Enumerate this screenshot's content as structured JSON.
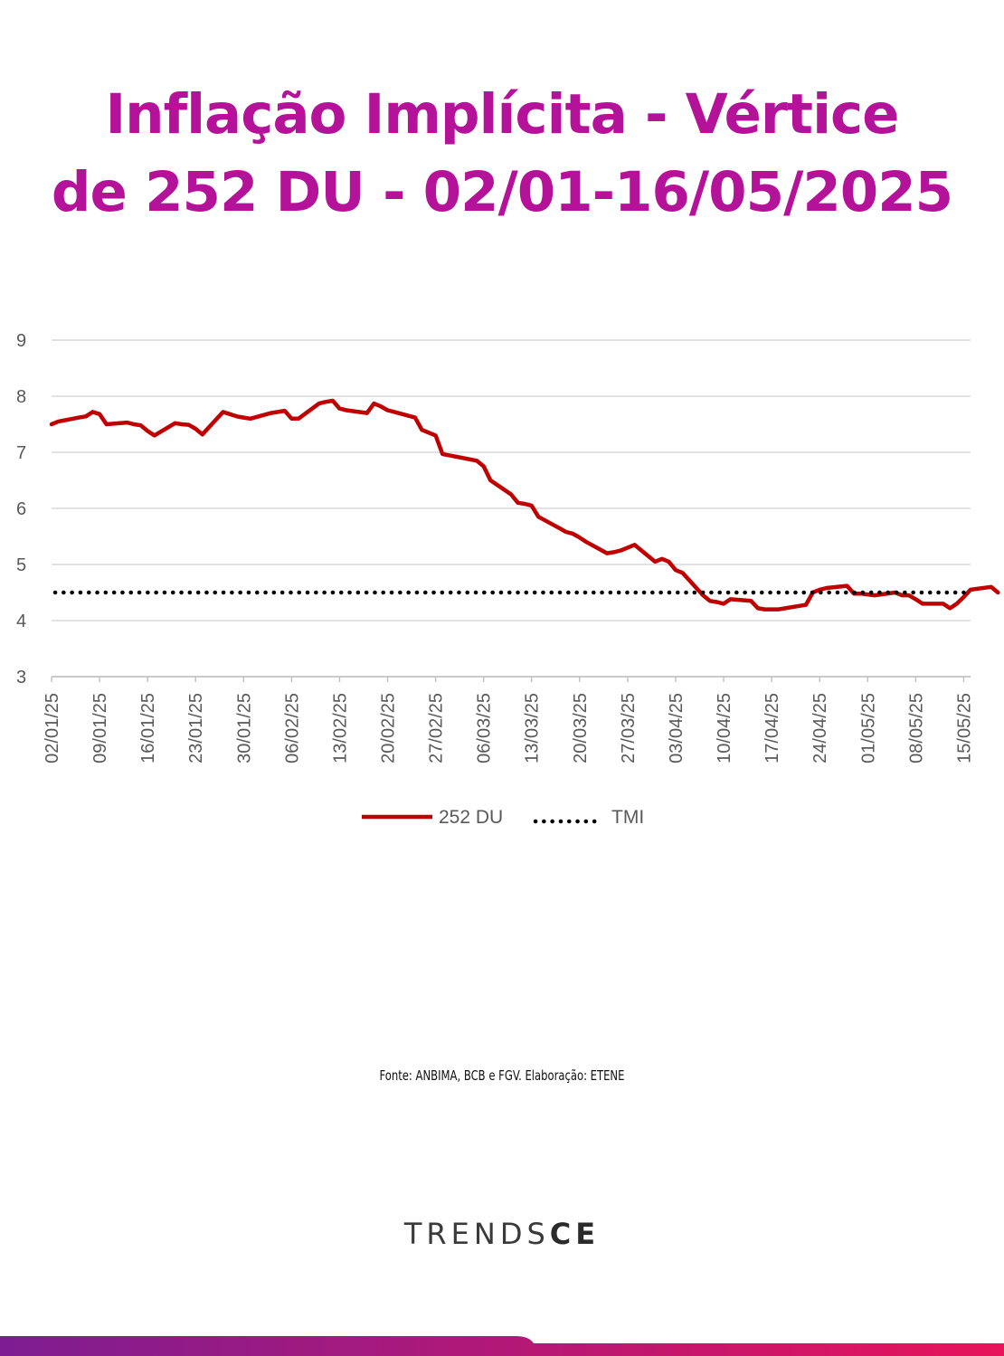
{
  "title_line1": "Inflação Implícita - Vértice",
  "title_line2": "de 252 DU - 02/01-16/05/2025",
  "source": "Fonte: ANBIMA, BCB e FGV. Elaboração: ETENE",
  "brand": {
    "light": "TRENDS",
    "bold": "CE"
  },
  "colors": {
    "title": "#b5129a",
    "series": "#c00000",
    "tmi": "#000000",
    "bar_start": "#7d1d92",
    "bar_end": "#e8135a"
  },
  "chart_data": {
    "type": "line",
    "x_tick_labels": [
      "02/01/25",
      "09/01/25",
      "16/01/25",
      "23/01/25",
      "30/01/25",
      "06/02/25",
      "13/02/25",
      "20/02/25",
      "27/02/25",
      "06/03/25",
      "13/03/25",
      "20/03/25",
      "27/03/25",
      "03/04/25",
      "10/04/25",
      "17/04/25",
      "24/04/25",
      "01/05/25",
      "08/05/25",
      "15/05/25"
    ],
    "y_tick_labels": [
      "3",
      "4",
      "5",
      "6",
      "7",
      "8",
      "9"
    ],
    "ylim": [
      3,
      9
    ],
    "xlim": [
      "2025-01-02",
      "2025-05-16"
    ],
    "grid": "horizontal",
    "legend_position": "bottom",
    "series": [
      {
        "name": "252 DU",
        "style": "solid",
        "color": "#c00000",
        "points": [
          [
            "2025-01-02",
            7.5
          ],
          [
            "2025-01-03",
            7.55
          ],
          [
            "2025-01-06",
            7.62
          ],
          [
            "2025-01-07",
            7.64
          ],
          [
            "2025-01-08",
            7.72
          ],
          [
            "2025-01-09",
            7.68
          ],
          [
            "2025-01-10",
            7.5
          ],
          [
            "2025-01-13",
            7.53
          ],
          [
            "2025-01-14",
            7.5
          ],
          [
            "2025-01-15",
            7.48
          ],
          [
            "2025-01-16",
            7.38
          ],
          [
            "2025-01-17",
            7.3
          ],
          [
            "2025-01-20",
            7.52
          ],
          [
            "2025-01-21",
            7.5
          ],
          [
            "2025-01-22",
            7.49
          ],
          [
            "2025-01-23",
            7.42
          ],
          [
            "2025-01-24",
            7.32
          ],
          [
            "2025-01-27",
            7.72
          ],
          [
            "2025-01-28",
            7.68
          ],
          [
            "2025-01-29",
            7.64
          ],
          [
            "2025-01-30",
            7.62
          ],
          [
            "2025-01-31",
            7.6
          ],
          [
            "2025-02-03",
            7.7
          ],
          [
            "2025-02-04",
            7.72
          ],
          [
            "2025-02-05",
            7.74
          ],
          [
            "2025-02-06",
            7.6
          ],
          [
            "2025-02-07",
            7.6
          ],
          [
            "2025-02-10",
            7.87
          ],
          [
            "2025-02-11",
            7.9
          ],
          [
            "2025-02-12",
            7.92
          ],
          [
            "2025-02-13",
            7.78
          ],
          [
            "2025-02-14",
            7.75
          ],
          [
            "2025-02-17",
            7.7
          ],
          [
            "2025-02-18",
            7.87
          ],
          [
            "2025-02-19",
            7.82
          ],
          [
            "2025-02-20",
            7.75
          ],
          [
            "2025-02-21",
            7.72
          ],
          [
            "2025-02-24",
            7.62
          ],
          [
            "2025-02-25",
            7.4
          ],
          [
            "2025-02-26",
            7.35
          ],
          [
            "2025-02-27",
            7.3
          ],
          [
            "2025-02-28",
            6.97
          ],
          [
            "2025-03-05",
            6.85
          ],
          [
            "2025-03-06",
            6.75
          ],
          [
            "2025-03-07",
            6.5
          ],
          [
            "2025-03-10",
            6.25
          ],
          [
            "2025-03-11",
            6.1
          ],
          [
            "2025-03-12",
            6.08
          ],
          [
            "2025-03-13",
            6.05
          ],
          [
            "2025-03-14",
            5.85
          ],
          [
            "2025-03-17",
            5.65
          ],
          [
            "2025-03-18",
            5.58
          ],
          [
            "2025-03-19",
            5.55
          ],
          [
            "2025-03-20",
            5.48
          ],
          [
            "2025-03-21",
            5.4
          ],
          [
            "2025-03-24",
            5.2
          ],
          [
            "2025-03-25",
            5.22
          ],
          [
            "2025-03-26",
            5.25
          ],
          [
            "2025-03-27",
            5.3
          ],
          [
            "2025-03-28",
            5.35
          ],
          [
            "2025-03-31",
            5.05
          ],
          [
            "2025-04-01",
            5.1
          ],
          [
            "2025-04-02",
            5.05
          ],
          [
            "2025-04-03",
            4.9
          ],
          [
            "2025-04-04",
            4.85
          ],
          [
            "2025-04-07",
            4.45
          ],
          [
            "2025-04-08",
            4.35
          ],
          [
            "2025-04-09",
            4.33
          ],
          [
            "2025-04-10",
            4.3
          ],
          [
            "2025-04-11",
            4.38
          ],
          [
            "2025-04-14",
            4.35
          ],
          [
            "2025-04-15",
            4.22
          ],
          [
            "2025-04-16",
            4.2
          ],
          [
            "2025-04-17",
            4.2
          ],
          [
            "2025-04-18",
            4.2
          ],
          [
            "2025-04-22",
            4.28
          ],
          [
            "2025-04-23",
            4.5
          ],
          [
            "2025-04-24",
            4.55
          ],
          [
            "2025-04-25",
            4.58
          ],
          [
            "2025-04-28",
            4.62
          ],
          [
            "2025-04-29",
            4.48
          ],
          [
            "2025-04-30",
            4.48
          ],
          [
            "2025-05-02",
            4.45
          ],
          [
            "2025-05-05",
            4.5
          ],
          [
            "2025-05-06",
            4.45
          ],
          [
            "2025-05-07",
            4.45
          ],
          [
            "2025-05-08",
            4.38
          ],
          [
            "2025-05-09",
            4.3
          ],
          [
            "2025-05-12",
            4.3
          ],
          [
            "2025-05-13",
            4.22
          ],
          [
            "2025-05-14",
            4.3
          ],
          [
            "2025-05-15",
            4.42
          ],
          [
            "2025-05-16",
            4.55
          ],
          [
            "2025-05-19",
            4.6
          ],
          [
            "2025-05-20",
            4.5
          ]
        ]
      },
      {
        "name": "TMI",
        "style": "dotted",
        "color": "#000000",
        "constant": 4.5
      }
    ]
  }
}
